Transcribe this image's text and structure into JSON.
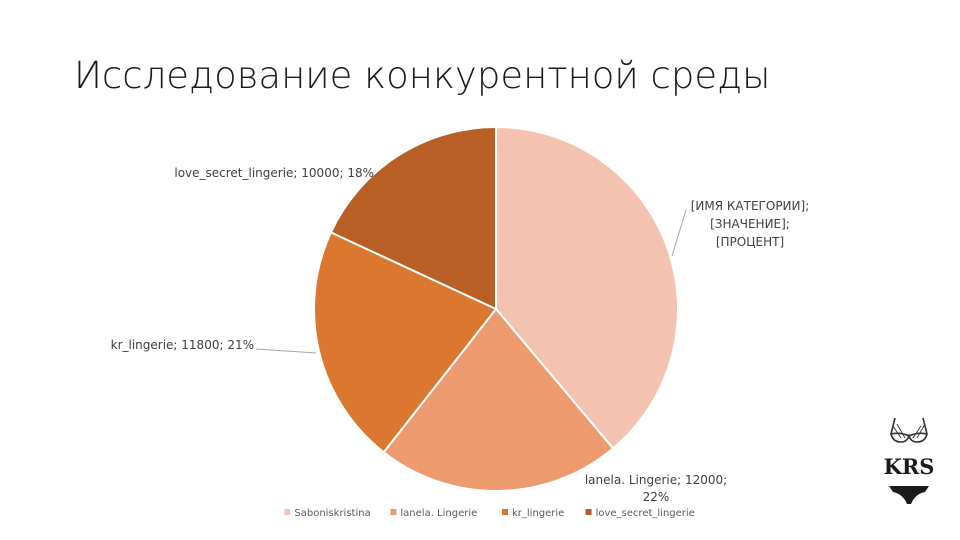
{
  "slide": {
    "title": "Исследование конкурентной среды"
  },
  "chart_data": {
    "type": "pie",
    "title": "",
    "categories": [
      "Saboniskristina",
      "lanela. Lingerie",
      "kr_lingerie",
      "love_secret_lingerie"
    ],
    "values": [
      21500,
      12000,
      11800,
      10000
    ],
    "data_labels": [
      [
        "[ИМЯ КАТЕГОРИИ];",
        "[ЗНАЧЕНИЕ];",
        "[ПРОЦЕНТ]"
      ],
      [
        "lanela. Lingerie; 12000;",
        "22%"
      ],
      [
        "kr_lingerie; 11800; 21%"
      ],
      [
        "love_secret_lingerie; 10000; 18%"
      ]
    ],
    "colors": [
      "#f4c2b1",
      "#ee9a6f",
      "#dc772f",
      "#b85f25"
    ],
    "legend_position": "bottom",
    "start_angle_deg": 0,
    "direction": "clockwise"
  },
  "logo": {
    "text": "KRS",
    "icon": "lingerie-logo-icon"
  }
}
